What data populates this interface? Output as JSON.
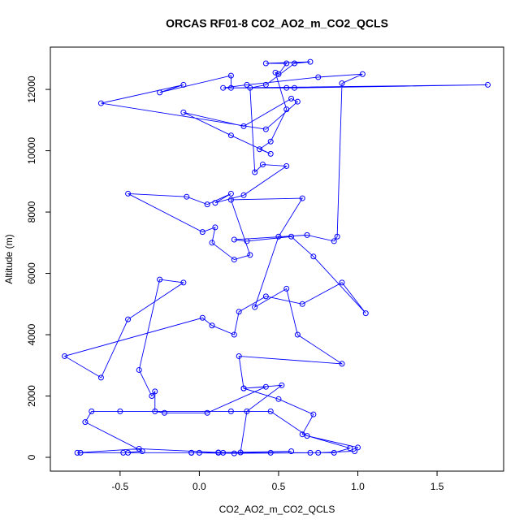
{
  "chart_data": {
    "type": "line",
    "markers": true,
    "color": "#0000ff",
    "title": "ORCAS RF01-8 CO2_AO2_m_CO2_QCLS",
    "x_label": "CO2_AO2_m_CO2_QCLS",
    "y_label": "Altitude (m)",
    "xlim": [
      -0.94,
      1.92
    ],
    "ylim": [
      -450,
      13380
    ],
    "xticks": [
      -0.5,
      {
        "value": 0,
        "label": "0.0"
      },
      0.5,
      {
        "value": 1,
        "label": "1.0"
      },
      1.5
    ],
    "yticks": [
      0,
      2000,
      4000,
      6000,
      8000,
      10000,
      12000
    ],
    "x": [
      0.58,
      0.12,
      -0.05,
      0.22,
      0.75,
      0.98,
      1.0,
      0.68,
      0.45,
      0.2,
      -0.5,
      -0.68,
      -0.72,
      -0.36,
      -0.48,
      -0.75,
      -0.77,
      -0.38,
      0.12,
      0.26,
      0.3,
      0.52,
      0.28,
      0.42,
      0.05,
      -0.22,
      -0.28,
      -0.28,
      -0.3,
      -0.38,
      -0.25,
      -0.1,
      -0.45,
      -0.62,
      -0.85,
      0.02,
      0.08,
      0.22,
      0.25,
      0.42,
      0.65,
      0.9,
      1.05,
      0.72,
      0.58,
      0.3,
      0.22,
      0.68,
      0.85,
      0.87,
      0.9,
      1.03,
      0.75,
      0.3,
      0.15,
      0.55,
      0.6,
      1.82,
      0.2,
      0.2,
      -0.25,
      -0.1,
      -0.62,
      0.42,
      0.62,
      0.58,
      0.28,
      -0.1,
      0.2,
      0.45,
      0.38,
      0.45,
      0.55,
      0.48,
      0.5,
      0.55,
      0.42,
      0.7,
      0.6,
      0.42,
      0.32,
      0.35,
      0.4,
      0.55,
      0.28,
      0.1,
      0.2,
      0.05,
      -0.08,
      -0.45,
      0.02,
      0.1,
      0.08,
      0.22,
      0.32,
      0.2,
      0.65,
      0.5,
      0.35,
      0.55,
      0.62,
      0.9,
      0.25,
      0.28,
      0.5,
      0.72,
      0.65,
      0.95,
      0.85,
      0.7,
      0.45,
      0.15,
      0.0,
      -0.05,
      -0.45
    ],
    "values": [
      200,
      150,
      150,
      130,
      150,
      200,
      320,
      700,
      1500,
      1500,
      1500,
      1500,
      1150,
      200,
      150,
      150,
      150,
      280,
      160,
      160,
      1500,
      2350,
      2250,
      2300,
      1450,
      1450,
      1500,
      2150,
      2000,
      2850,
      5800,
      5700,
      4500,
      2600,
      3300,
      4550,
      4300,
      4000,
      4750,
      5250,
      5000,
      5700,
      4700,
      6550,
      7200,
      7050,
      7100,
      7250,
      7050,
      7200,
      12200,
      12500,
      12400,
      12150,
      12050,
      12050,
      12050,
      12150,
      12050,
      12450,
      11900,
      12150,
      11550,
      10700,
      11600,
      11700,
      10800,
      11250,
      10500,
      9900,
      10050,
      10300,
      11350,
      12550,
      12500,
      12850,
      12850,
      12900,
      12850,
      12150,
      12050,
      9300,
      9550,
      9500,
      8550,
      8300,
      8600,
      8250,
      8500,
      8600,
      7350,
      7500,
      7000,
      6450,
      6600,
      8400,
      8450,
      7200,
      4900,
      5500,
      4000,
      3050,
      3300,
      2250,
      1900,
      1400,
      750,
      300,
      150,
      150,
      150,
      150,
      150,
      150,
      150
    ]
  }
}
